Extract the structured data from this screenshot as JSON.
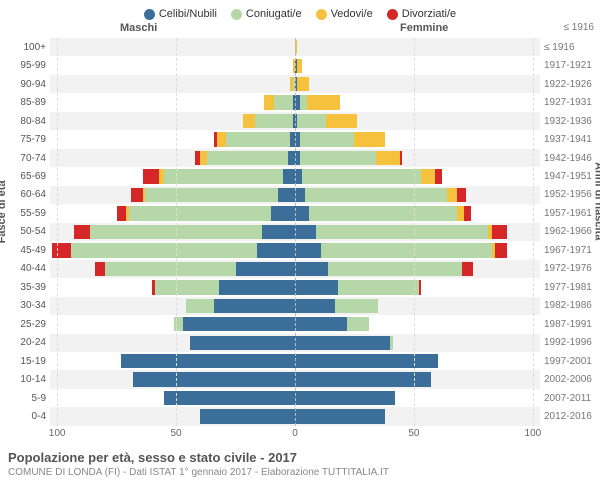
{
  "chart": {
    "type": "population-pyramid",
    "background_color": "#ffffff",
    "stripe_color": "#f2f2f2",
    "grid_color": "#dddddd",
    "center_line_color": "#bbbbbb",
    "title": "Popolazione per età, sesso e stato civile - 2017",
    "subtitle": "COMUNE DI LONDA (FI) - Dati ISTAT 1° gennaio 2017 - Elaborazione TUTTITALIA.IT",
    "legend": [
      {
        "label": "Celibi/Nubili",
        "color": "#3b6e99"
      },
      {
        "label": "Coniugati/e",
        "color": "#b6d7a8"
      },
      {
        "label": "Vedovi/e",
        "color": "#f6c13c"
      },
      {
        "label": "Divorziati/e",
        "color": "#d62728"
      }
    ],
    "male_header": "Maschi",
    "female_header": "Femmine",
    "birth_header": "≤ 1916",
    "y_title_left": "Fasce di età",
    "y_title_right": "Anni di nascita",
    "x_ticks_male": [
      100,
      50,
      0
    ],
    "x_ticks_female": [
      50,
      100
    ],
    "x_max": 103,
    "age_brackets": [
      {
        "age": "100+",
        "birth": "≤ 1916",
        "m": {
          "c": 0,
          "co": 0,
          "v": 0,
          "d": 0
        },
        "f": {
          "c": 0,
          "co": 0,
          "v": 1,
          "d": 0
        }
      },
      {
        "age": "95-99",
        "birth": "1917-1921",
        "m": {
          "c": 0,
          "co": 0,
          "v": 1,
          "d": 0
        },
        "f": {
          "c": 1,
          "co": 0,
          "v": 2,
          "d": 0
        }
      },
      {
        "age": "90-94",
        "birth": "1922-1926",
        "m": {
          "c": 0,
          "co": 1,
          "v": 1,
          "d": 0
        },
        "f": {
          "c": 1,
          "co": 0,
          "v": 5,
          "d": 0
        }
      },
      {
        "age": "85-89",
        "birth": "1927-1931",
        "m": {
          "c": 1,
          "co": 8,
          "v": 4,
          "d": 0
        },
        "f": {
          "c": 2,
          "co": 3,
          "v": 14,
          "d": 0
        }
      },
      {
        "age": "80-84",
        "birth": "1932-1936",
        "m": {
          "c": 1,
          "co": 16,
          "v": 5,
          "d": 0
        },
        "f": {
          "c": 1,
          "co": 12,
          "v": 13,
          "d": 0
        }
      },
      {
        "age": "75-79",
        "birth": "1937-1941",
        "m": {
          "c": 2,
          "co": 27,
          "v": 4,
          "d": 1
        },
        "f": {
          "c": 2,
          "co": 23,
          "v": 13,
          "d": 0
        }
      },
      {
        "age": "70-74",
        "birth": "1942-1946",
        "m": {
          "c": 3,
          "co": 34,
          "v": 3,
          "d": 2
        },
        "f": {
          "c": 2,
          "co": 32,
          "v": 10,
          "d": 1
        }
      },
      {
        "age": "65-69",
        "birth": "1947-1951",
        "m": {
          "c": 5,
          "co": 50,
          "v": 2,
          "d": 7
        },
        "f": {
          "c": 3,
          "co": 50,
          "v": 6,
          "d": 3
        }
      },
      {
        "age": "60-64",
        "birth": "1952-1956",
        "m": {
          "c": 7,
          "co": 56,
          "v": 1,
          "d": 5
        },
        "f": {
          "c": 4,
          "co": 60,
          "v": 4,
          "d": 4
        }
      },
      {
        "age": "55-59",
        "birth": "1957-1961",
        "m": {
          "c": 10,
          "co": 60,
          "v": 1,
          "d": 4
        },
        "f": {
          "c": 6,
          "co": 62,
          "v": 3,
          "d": 3
        }
      },
      {
        "age": "50-54",
        "birth": "1962-1966",
        "m": {
          "c": 14,
          "co": 72,
          "v": 0,
          "d": 7
        },
        "f": {
          "c": 9,
          "co": 72,
          "v": 2,
          "d": 6
        }
      },
      {
        "age": "45-49",
        "birth": "1967-1971",
        "m": {
          "c": 16,
          "co": 78,
          "v": 0,
          "d": 8
        },
        "f": {
          "c": 11,
          "co": 72,
          "v": 1,
          "d": 5
        }
      },
      {
        "age": "40-44",
        "birth": "1972-1976",
        "m": {
          "c": 25,
          "co": 55,
          "v": 0,
          "d": 4
        },
        "f": {
          "c": 14,
          "co": 56,
          "v": 0,
          "d": 5
        }
      },
      {
        "age": "35-39",
        "birth": "1977-1981",
        "m": {
          "c": 32,
          "co": 27,
          "v": 0,
          "d": 1
        },
        "f": {
          "c": 18,
          "co": 34,
          "v": 0,
          "d": 1
        }
      },
      {
        "age": "30-34",
        "birth": "1982-1986",
        "m": {
          "c": 34,
          "co": 12,
          "v": 0,
          "d": 0
        },
        "f": {
          "c": 17,
          "co": 18,
          "v": 0,
          "d": 0
        }
      },
      {
        "age": "25-29",
        "birth": "1987-1991",
        "m": {
          "c": 47,
          "co": 4,
          "v": 0,
          "d": 0
        },
        "f": {
          "c": 22,
          "co": 9,
          "v": 0,
          "d": 0
        }
      },
      {
        "age": "20-24",
        "birth": "1992-1996",
        "m": {
          "c": 44,
          "co": 0,
          "v": 0,
          "d": 0
        },
        "f": {
          "c": 40,
          "co": 1,
          "v": 0,
          "d": 0
        }
      },
      {
        "age": "15-19",
        "birth": "1997-2001",
        "m": {
          "c": 73,
          "co": 0,
          "v": 0,
          "d": 0
        },
        "f": {
          "c": 60,
          "co": 0,
          "v": 0,
          "d": 0
        }
      },
      {
        "age": "10-14",
        "birth": "2002-2006",
        "m": {
          "c": 68,
          "co": 0,
          "v": 0,
          "d": 0
        },
        "f": {
          "c": 57,
          "co": 0,
          "v": 0,
          "d": 0
        }
      },
      {
        "age": "5-9",
        "birth": "2007-2011",
        "m": {
          "c": 55,
          "co": 0,
          "v": 0,
          "d": 0
        },
        "f": {
          "c": 42,
          "co": 0,
          "v": 0,
          "d": 0
        }
      },
      {
        "age": "0-4",
        "birth": "2012-2016",
        "m": {
          "c": 40,
          "co": 0,
          "v": 0,
          "d": 0
        },
        "f": {
          "c": 38,
          "co": 0,
          "v": 0,
          "d": 0
        }
      }
    ]
  }
}
